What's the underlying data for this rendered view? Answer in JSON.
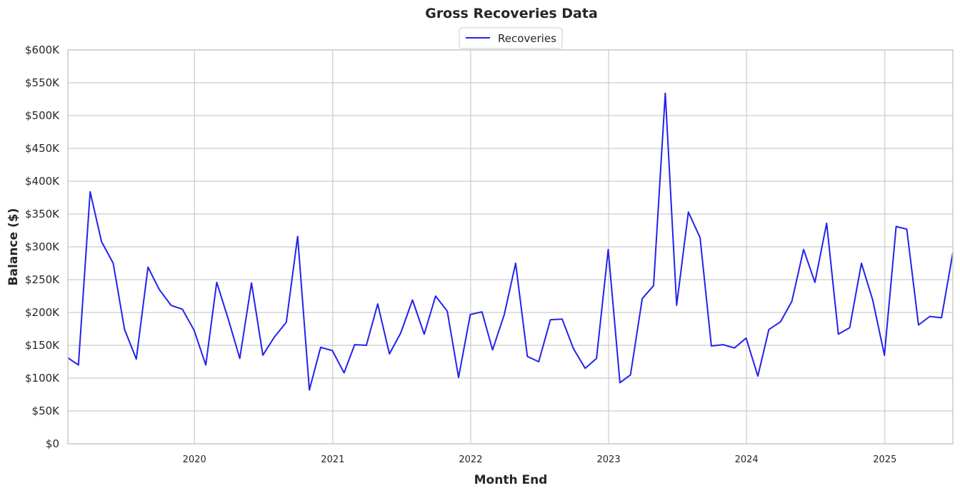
{
  "chart_data": {
    "type": "line",
    "title": "Gross Recoveries Data",
    "xlabel": "Month End",
    "ylabel": "Balance ($)",
    "ylim": [
      0,
      600000
    ],
    "xlim": [
      "2019-01-31",
      "2025-06-30"
    ],
    "yticks": [
      0,
      50000,
      100000,
      150000,
      200000,
      250000,
      300000,
      350000,
      400000,
      450000,
      500000,
      550000,
      600000
    ],
    "ytick_labels": [
      "$0",
      "$50K",
      "$100K",
      "$150K",
      "$200K",
      "$250K",
      "$300K",
      "$350K",
      "$400K",
      "$450K",
      "$500K",
      "$550K",
      "$600K"
    ],
    "xtick_labels": [
      "2020",
      "2021",
      "2022",
      "2023",
      "2024",
      "2025"
    ],
    "grid": true,
    "legend_position": "top-center",
    "color": "#2222ee",
    "series": [
      {
        "name": "Recoveries",
        "x": [
          "2019-01-31",
          "2019-02-28",
          "2019-03-31",
          "2019-04-30",
          "2019-05-31",
          "2019-06-30",
          "2019-07-31",
          "2019-08-31",
          "2019-09-30",
          "2019-10-31",
          "2019-11-30",
          "2019-12-31",
          "2020-01-31",
          "2020-02-29",
          "2020-03-31",
          "2020-04-30",
          "2020-05-31",
          "2020-06-30",
          "2020-07-31",
          "2020-08-31",
          "2020-09-30",
          "2020-10-31",
          "2020-11-30",
          "2020-12-31",
          "2021-01-31",
          "2021-02-28",
          "2021-03-31",
          "2021-04-30",
          "2021-05-31",
          "2021-06-30",
          "2021-07-31",
          "2021-08-31",
          "2021-09-30",
          "2021-10-31",
          "2021-11-30",
          "2021-12-31",
          "2022-01-31",
          "2022-02-28",
          "2022-03-31",
          "2022-04-30",
          "2022-05-31",
          "2022-06-30",
          "2022-07-31",
          "2022-08-31",
          "2022-09-30",
          "2022-10-31",
          "2022-11-30",
          "2022-12-31",
          "2023-01-31",
          "2023-02-28",
          "2023-03-31",
          "2023-04-30",
          "2023-05-31",
          "2023-06-30",
          "2023-07-31",
          "2023-08-31",
          "2023-09-30",
          "2023-10-31",
          "2023-11-30",
          "2023-12-31",
          "2024-01-31",
          "2024-02-29",
          "2024-03-31",
          "2024-04-30",
          "2024-05-31",
          "2024-06-30",
          "2024-07-31",
          "2024-08-31",
          "2024-09-30",
          "2024-10-31",
          "2024-11-30",
          "2024-12-31",
          "2025-01-31",
          "2025-02-28",
          "2025-03-31",
          "2025-04-30",
          "2025-05-31",
          "2025-06-30"
        ],
        "values": [
          131000,
          120000,
          384000,
          308000,
          275000,
          174000,
          129000,
          269000,
          235000,
          211000,
          205000,
          173000,
          120000,
          246000,
          189000,
          130000,
          245000,
          135000,
          163000,
          185000,
          316000,
          82000,
          147000,
          142000,
          108000,
          151000,
          150000,
          213000,
          137000,
          169000,
          219000,
          167000,
          225000,
          202000,
          101000,
          197000,
          201000,
          143000,
          197000,
          275000,
          133000,
          125000,
          189000,
          190000,
          145000,
          115000,
          130000,
          296000,
          93000,
          105000,
          221000,
          241000,
          534000,
          211000,
          353000,
          314000,
          149000,
          151000,
          146000,
          161000,
          103000,
          174000,
          186000,
          217000,
          296000,
          246000,
          336000,
          167000,
          177000,
          275000,
          219000,
          135000,
          331000,
          327000,
          181000,
          194000,
          192000,
          291000
        ]
      }
    ]
  }
}
